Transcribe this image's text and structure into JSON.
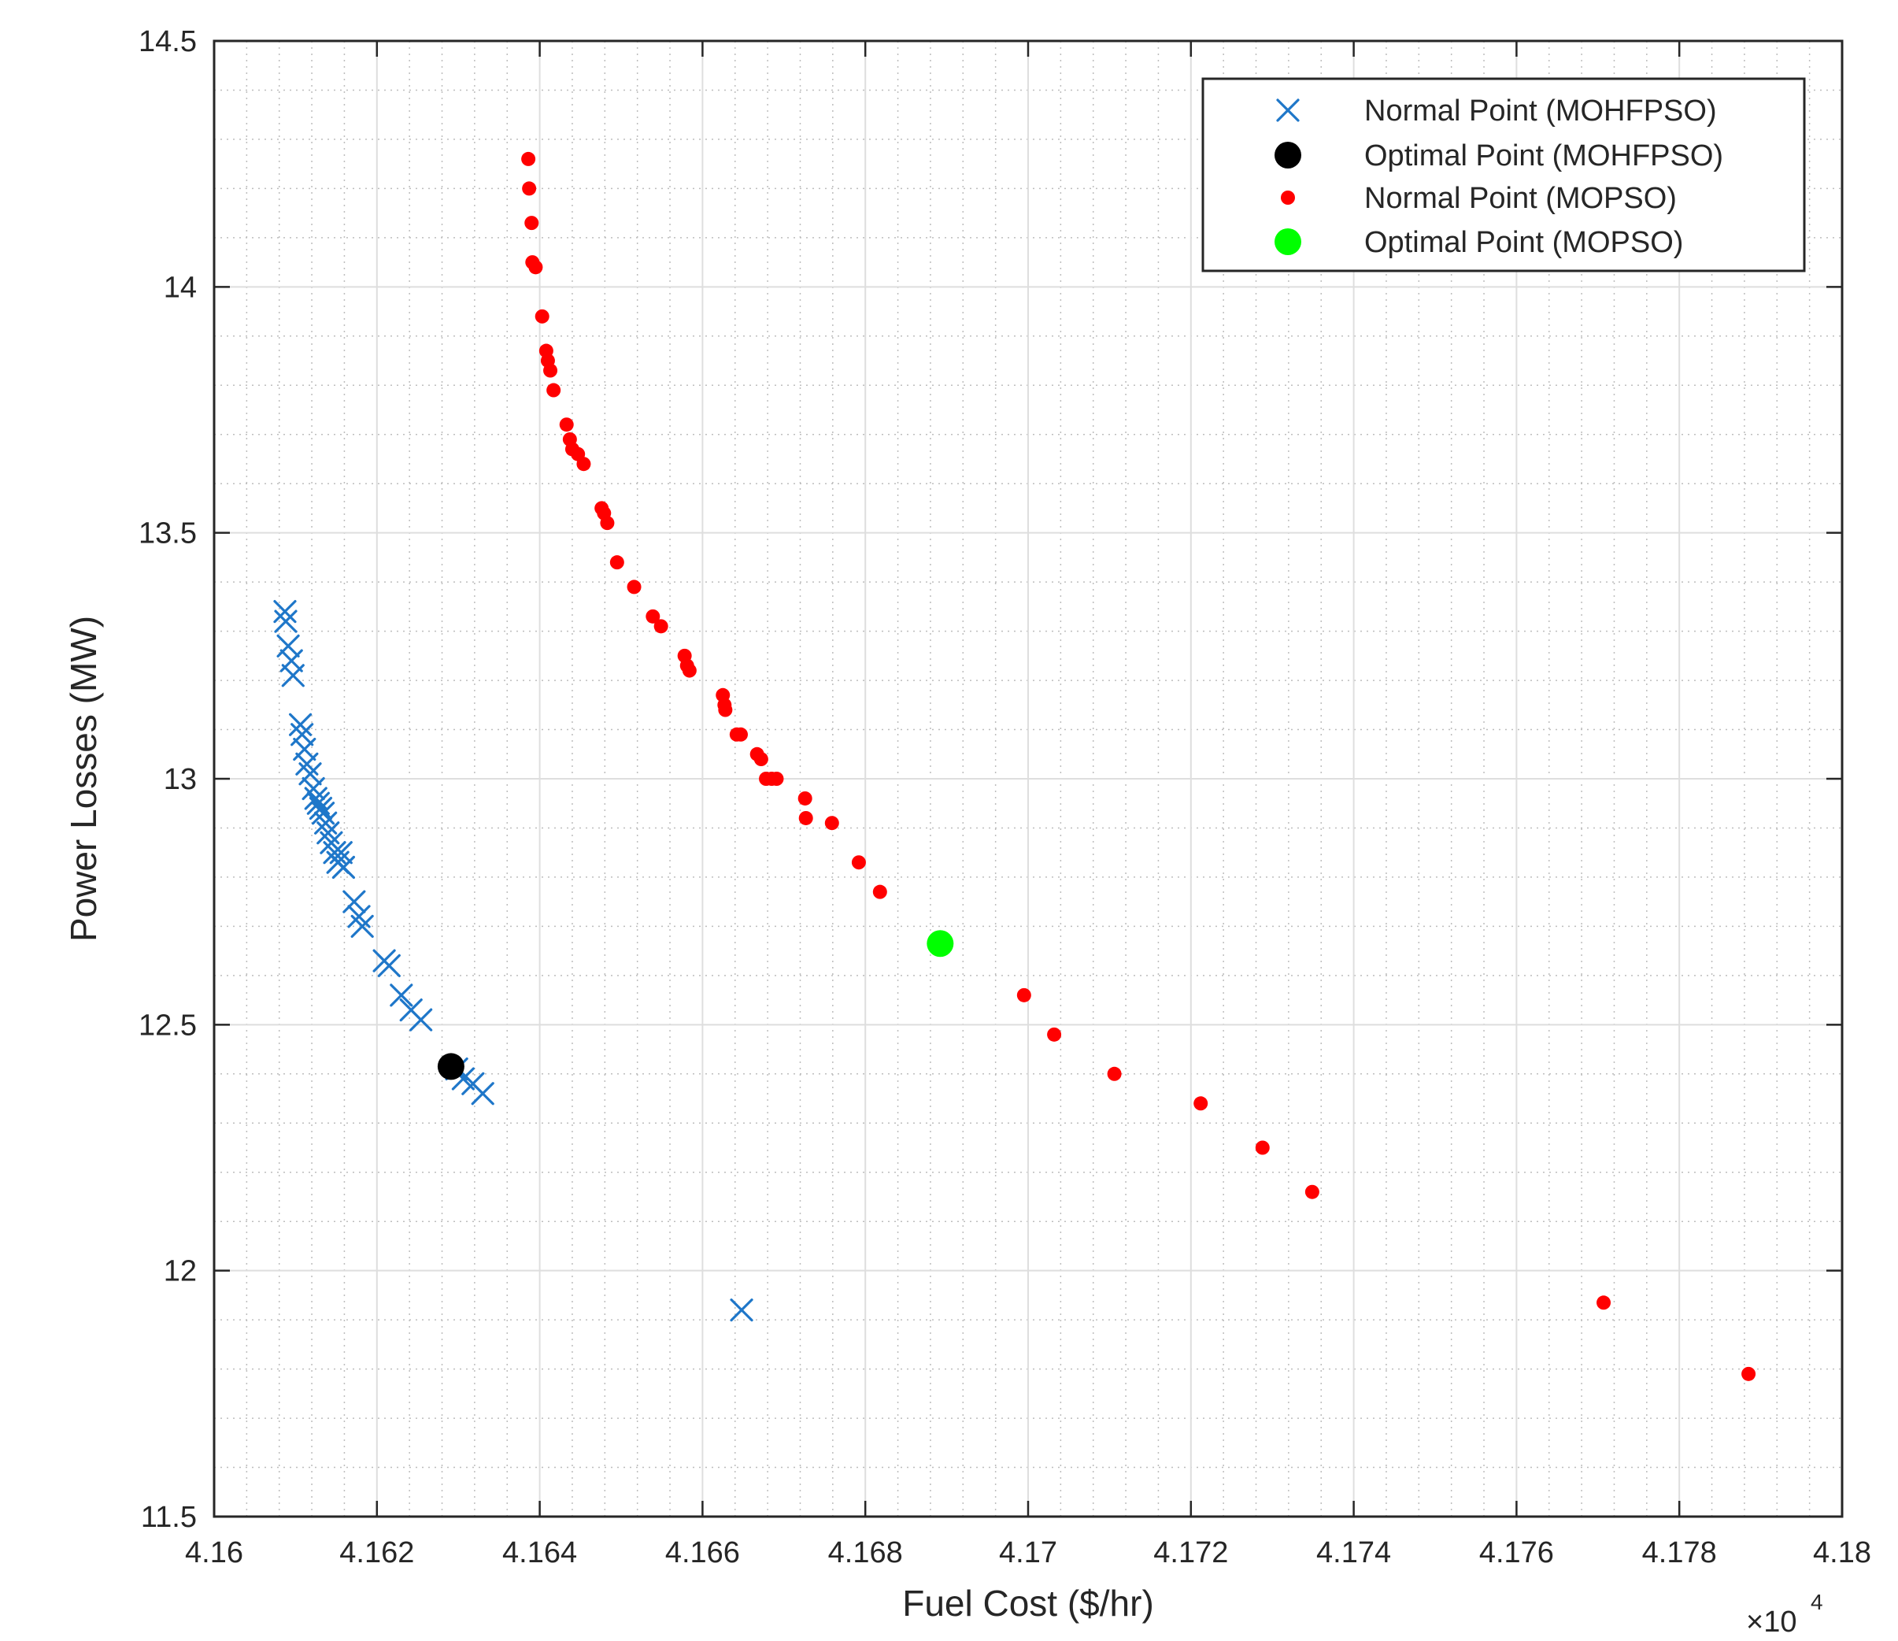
{
  "chart_data": {
    "type": "scatter",
    "title": "",
    "xlabel": "Fuel Cost ($/hr)",
    "ylabel": "Power Losses (MW)",
    "x_multiplier_label": "×10",
    "x_multiplier_exponent": "4",
    "xlim": [
      4.16,
      4.18
    ],
    "ylim": [
      11.5,
      14.5
    ],
    "xticks": [
      4.16,
      4.162,
      4.164,
      4.166,
      4.168,
      4.17,
      4.172,
      4.174,
      4.176,
      4.178,
      4.18
    ],
    "xtick_labels": [
      "4.16",
      "4.162",
      "4.164",
      "4.166",
      "4.168",
      "4.17",
      "4.172",
      "4.174",
      "4.176",
      "4.178",
      "4.18"
    ],
    "yticks": [
      11.5,
      12,
      12.5,
      13,
      13.5,
      14,
      14.5
    ],
    "ytick_labels": [
      "11.5",
      "12",
      "12.5",
      "13",
      "13.5",
      "14",
      "14.5"
    ],
    "grid": true,
    "minor_grid": true,
    "legend_position": "top-right",
    "series": [
      {
        "name": "Normal Point (MOHFPSO)",
        "marker": "x",
        "color": "#1f77c9",
        "points": [
          [
            4.16087,
            13.34
          ],
          [
            4.16088,
            13.32
          ],
          [
            4.16091,
            13.27
          ],
          [
            4.16095,
            13.24
          ],
          [
            4.16097,
            13.21
          ],
          [
            4.16106,
            13.11
          ],
          [
            4.16108,
            13.09
          ],
          [
            4.16111,
            13.06
          ],
          [
            4.16114,
            13.03
          ],
          [
            4.16118,
            13.01
          ],
          [
            4.16122,
            12.98
          ],
          [
            4.16125,
            12.96
          ],
          [
            4.16128,
            12.95
          ],
          [
            4.16131,
            12.94
          ],
          [
            4.16134,
            12.93
          ],
          [
            4.16137,
            12.91
          ],
          [
            4.1614,
            12.89
          ],
          [
            4.16144,
            12.87
          ],
          [
            4.16148,
            12.85
          ],
          [
            4.16152,
            12.83
          ],
          [
            4.16156,
            12.85
          ],
          [
            4.16159,
            12.82
          ],
          [
            4.16172,
            12.75
          ],
          [
            4.16178,
            12.72
          ],
          [
            4.16182,
            12.7
          ],
          [
            4.16209,
            12.63
          ],
          [
            4.16215,
            12.62
          ],
          [
            4.1623,
            12.56
          ],
          [
            4.16242,
            12.53
          ],
          [
            4.16254,
            12.51
          ],
          [
            4.16298,
            12.41
          ],
          [
            4.16306,
            12.39
          ],
          [
            4.16318,
            12.38
          ],
          [
            4.1633,
            12.36
          ],
          [
            4.16648,
            11.92
          ]
        ]
      },
      {
        "name": "Optimal Point (MOHFPSO)",
        "marker": "circle",
        "color": "#000000",
        "points": [
          [
            4.16291,
            12.415
          ]
        ]
      },
      {
        "name": "Normal Point (MOPSO)",
        "marker": "dot",
        "color": "#ff0000",
        "points": [
          [
            4.16386,
            14.26
          ],
          [
            4.16387,
            14.2
          ],
          [
            4.1639,
            14.13
          ],
          [
            4.16391,
            14.05
          ],
          [
            4.16395,
            14.04
          ],
          [
            4.16403,
            13.94
          ],
          [
            4.16408,
            13.87
          ],
          [
            4.1641,
            13.85
          ],
          [
            4.16413,
            13.83
          ],
          [
            4.16417,
            13.79
          ],
          [
            4.16433,
            13.72
          ],
          [
            4.16437,
            13.69
          ],
          [
            4.1644,
            13.67
          ],
          [
            4.16447,
            13.66
          ],
          [
            4.16454,
            13.64
          ],
          [
            4.16476,
            13.55
          ],
          [
            4.16479,
            13.54
          ],
          [
            4.16483,
            13.52
          ],
          [
            4.16495,
            13.44
          ],
          [
            4.16516,
            13.39
          ],
          [
            4.16539,
            13.33
          ],
          [
            4.16549,
            13.31
          ],
          [
            4.16578,
            13.25
          ],
          [
            4.16581,
            13.23
          ],
          [
            4.16584,
            13.22
          ],
          [
            4.16625,
            13.17
          ],
          [
            4.16627,
            13.15
          ],
          [
            4.16628,
            13.14
          ],
          [
            4.16642,
            13.09
          ],
          [
            4.16647,
            13.09
          ],
          [
            4.16667,
            13.05
          ],
          [
            4.16672,
            13.04
          ],
          [
            4.16678,
            13.0
          ],
          [
            4.16685,
            13.0
          ],
          [
            4.16691,
            13.0
          ],
          [
            4.16726,
            12.96
          ],
          [
            4.16727,
            12.92
          ],
          [
            4.16759,
            12.91
          ],
          [
            4.16792,
            12.83
          ],
          [
            4.16818,
            12.77
          ],
          [
            4.16995,
            12.56
          ],
          [
            4.17032,
            12.48
          ],
          [
            4.17106,
            12.4
          ],
          [
            4.17212,
            12.34
          ],
          [
            4.17288,
            12.25
          ],
          [
            4.17349,
            12.16
          ],
          [
            4.17707,
            11.935
          ],
          [
            4.17885,
            11.79
          ]
        ]
      },
      {
        "name": "Optimal Point (MOPSO)",
        "marker": "circle",
        "color": "#00ff00",
        "points": [
          [
            4.16892,
            12.665
          ]
        ]
      }
    ]
  }
}
